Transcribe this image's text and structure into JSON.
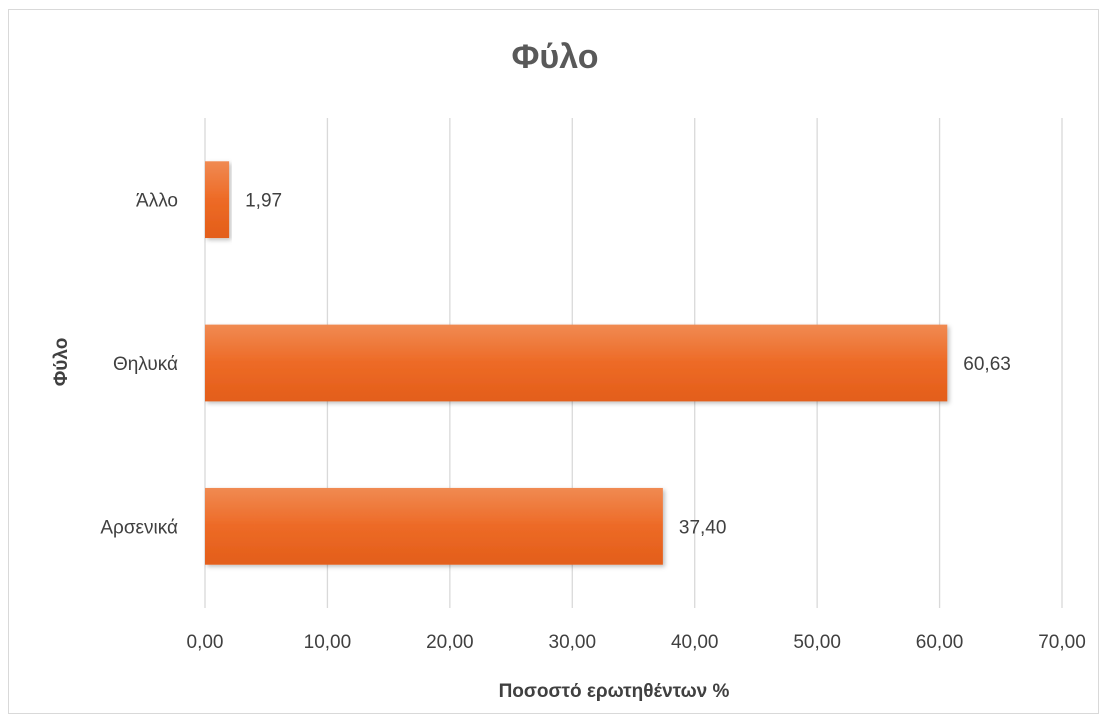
{
  "chart_data": {
    "type": "bar",
    "orientation": "horizontal",
    "title": "Φύλο",
    "xlabel": "Ποσοστό ερωτηθέντων %",
    "ylabel": "Φύλο",
    "categories": [
      "Άλλο",
      "Θηλυκά",
      "Αρσενικά"
    ],
    "values": [
      1.97,
      60.63,
      37.4
    ],
    "value_labels": [
      "1,97",
      "60,63",
      "37,40"
    ],
    "xlim": [
      0,
      70
    ],
    "x_ticks": [
      "0,00",
      "10,00",
      "20,00",
      "30,00",
      "40,00",
      "50,00",
      "60,00",
      "70,00"
    ],
    "grid": true,
    "legend": "none",
    "bar_color": "#ED6A26"
  }
}
